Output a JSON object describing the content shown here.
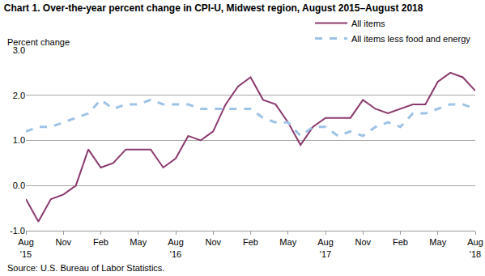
{
  "chart_data": {
    "type": "line",
    "title": "Chart 1. Over-the-year percent change in CPI-U, Midwest region, August 2015–August 2018",
    "yaxis_title": "Percent change",
    "source": "Source: U.S. Bureau of Labor Statistics.",
    "categories": [
      "Aug\n'15",
      null,
      null,
      "Nov",
      null,
      null,
      "Feb",
      null,
      null,
      "May",
      null,
      null,
      "Aug\n'16",
      null,
      null,
      "Nov",
      null,
      null,
      "Feb",
      null,
      null,
      "May",
      null,
      null,
      "Aug\n'17",
      null,
      null,
      "Nov",
      null,
      null,
      "Feb",
      null,
      null,
      "May",
      null,
      null,
      "Aug\n'18"
    ],
    "series": [
      {
        "name": "All items",
        "color": "#8b3a6e",
        "line_style": "solid",
        "values": [
          -0.3,
          -0.8,
          -0.3,
          -0.2,
          0.0,
          0.8,
          0.4,
          0.5,
          0.8,
          0.8,
          0.8,
          0.4,
          0.6,
          1.1,
          1.0,
          1.2,
          1.8,
          2.2,
          2.4,
          1.9,
          1.8,
          1.4,
          0.9,
          1.3,
          1.5,
          1.5,
          1.5,
          1.9,
          1.7,
          1.6,
          1.7,
          1.8,
          1.8,
          2.3,
          2.5,
          2.4,
          2.1
        ]
      },
      {
        "name": "All items less food and energy",
        "color": "#9dc3e6",
        "line_style": "dash",
        "values": [
          1.2,
          1.3,
          1.3,
          1.4,
          1.5,
          1.6,
          1.9,
          1.7,
          1.8,
          1.8,
          1.9,
          1.8,
          1.8,
          1.8,
          1.7,
          1.7,
          1.7,
          1.7,
          1.7,
          1.5,
          1.4,
          1.4,
          1.1,
          1.3,
          1.3,
          1.1,
          1.2,
          1.1,
          1.3,
          1.4,
          1.3,
          1.6,
          1.6,
          1.7,
          1.8,
          1.8,
          1.7
        ]
      }
    ],
    "ylim": [
      -1.0,
      3.0
    ],
    "yticks": [
      {
        "value": -1.0,
        "label": "-1.0"
      },
      {
        "value": 0.0,
        "label": "0.0"
      },
      {
        "value": 1.0,
        "label": "1.0"
      },
      {
        "value": 2.0,
        "label": "2.0"
      },
      {
        "value": 3.0,
        "label": "3.0"
      }
    ],
    "grid": true,
    "legend": "top-right"
  }
}
